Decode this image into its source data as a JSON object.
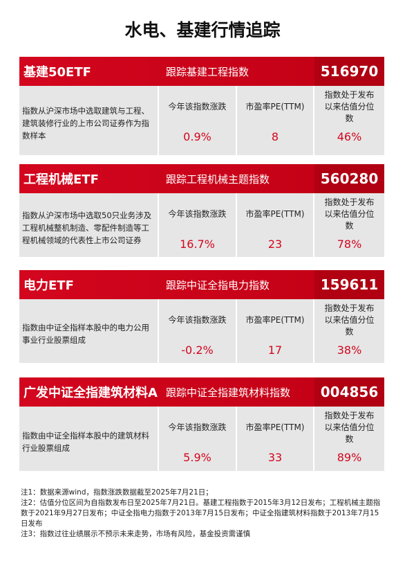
{
  "title": "水电、基建行情追踪",
  "cards": [
    {
      "name": "基建50ETF",
      "index": "跟踪基建工程指数",
      "code": "516970",
      "description": "指数从沪深市场中选取建筑与工程、建筑装修行业的上市公司证券作为指数样本",
      "metrics": [
        {
          "label": "今年该指数涨跌",
          "value": "0.9%"
        },
        {
          "label": "市盈率PE(TTM)",
          "value": "8"
        },
        {
          "label": "指数处于发布以来估值分位数",
          "value": "46%"
        }
      ]
    },
    {
      "name": "工程机械ETF",
      "index": "跟踪工程机械主题指数",
      "code": "560280",
      "description": "指数从沪深市场中选取50只业务涉及工程机械整机制造、零配件制造等工程机械领域的代表性上市公司证券",
      "metrics": [
        {
          "label": "今年该指数涨跌",
          "value": "16.7%"
        },
        {
          "label": "市盈率PE(TTM)",
          "value": "23"
        },
        {
          "label": "指数处于发布以来估值分位数",
          "value": "78%"
        }
      ]
    },
    {
      "name": "电力ETF",
      "index": "跟踪中证全指电力指数",
      "code": "159611",
      "description": "指数由中证全指样本股中的电力公用事业行业股票组成",
      "metrics": [
        {
          "label": "今年该指数涨跌",
          "value": "-0.2%"
        },
        {
          "label": "市盈率PE(TTM)",
          "value": "17"
        },
        {
          "label": "指数处于发布以来估值分位数",
          "value": "38%"
        }
      ]
    },
    {
      "name": "广发中证全指建筑材料A",
      "index": "跟踪中证全指建筑材料指数",
      "code": "004856",
      "description": "指数由中证全指样本股中的建筑材料行业股票组成",
      "metrics": [
        {
          "label": "今年该指数涨跌",
          "value": "5.9%"
        },
        {
          "label": "市盈率PE(TTM)",
          "value": "33"
        },
        {
          "label": "指数处于发布以来估值分位数",
          "value": "89%"
        }
      ]
    }
  ],
  "notes": [
    "注1：数据来源wind，指数涨跌数据截至2025年7月21日；",
    "注2：估值分位区间为自指数发布日至2025年7月21日。基建工程指数于2015年3月12日发布；工程机械主题指数于2021年9月27日发布；中证全指电力指数于2013年7月15日发布；中证全指建筑材料指数于2013年7月15日发布",
    "注3：指数过往业绩展示不预示未来走势，市场有风险，基金投资需谨慎"
  ]
}
